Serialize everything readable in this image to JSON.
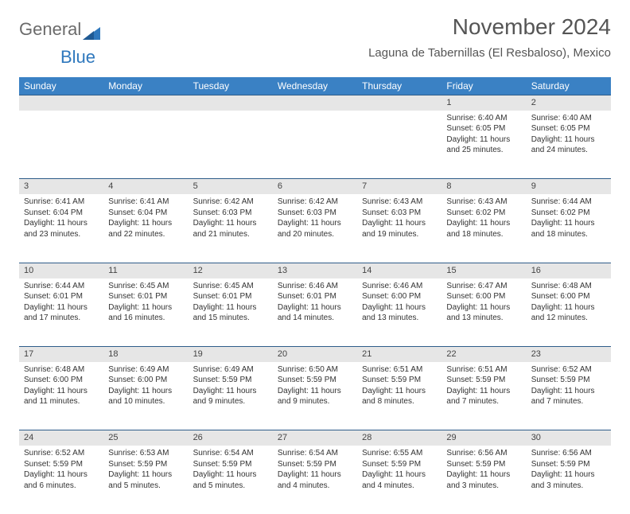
{
  "brand": {
    "part1": "General",
    "part2": "Blue"
  },
  "title": "November 2024",
  "location": "Laguna de Tabernillas (El Resbaloso), Mexico",
  "colors": {
    "header_bg": "#3a81c4",
    "header_text": "#ffffff",
    "daynum_bg": "#e6e6e6",
    "row_border": "#2f5d8a",
    "logo_gray": "#6b6b6b",
    "logo_blue": "#2f78bd",
    "body_text": "#333333",
    "page_bg": "#ffffff"
  },
  "typography": {
    "title_fontsize": 28,
    "location_fontsize": 15,
    "weekday_fontsize": 12,
    "daynum_fontsize": 11,
    "cell_fontsize": 10
  },
  "weekdays": [
    "Sunday",
    "Monday",
    "Tuesday",
    "Wednesday",
    "Thursday",
    "Friday",
    "Saturday"
  ],
  "weeks": [
    [
      {
        "n": "",
        "sunrise": "",
        "sunset": "",
        "daylight": ""
      },
      {
        "n": "",
        "sunrise": "",
        "sunset": "",
        "daylight": ""
      },
      {
        "n": "",
        "sunrise": "",
        "sunset": "",
        "daylight": ""
      },
      {
        "n": "",
        "sunrise": "",
        "sunset": "",
        "daylight": ""
      },
      {
        "n": "",
        "sunrise": "",
        "sunset": "",
        "daylight": ""
      },
      {
        "n": "1",
        "sunrise": "Sunrise: 6:40 AM",
        "sunset": "Sunset: 6:05 PM",
        "daylight": "Daylight: 11 hours and 25 minutes."
      },
      {
        "n": "2",
        "sunrise": "Sunrise: 6:40 AM",
        "sunset": "Sunset: 6:05 PM",
        "daylight": "Daylight: 11 hours and 24 minutes."
      }
    ],
    [
      {
        "n": "3",
        "sunrise": "Sunrise: 6:41 AM",
        "sunset": "Sunset: 6:04 PM",
        "daylight": "Daylight: 11 hours and 23 minutes."
      },
      {
        "n": "4",
        "sunrise": "Sunrise: 6:41 AM",
        "sunset": "Sunset: 6:04 PM",
        "daylight": "Daylight: 11 hours and 22 minutes."
      },
      {
        "n": "5",
        "sunrise": "Sunrise: 6:42 AM",
        "sunset": "Sunset: 6:03 PM",
        "daylight": "Daylight: 11 hours and 21 minutes."
      },
      {
        "n": "6",
        "sunrise": "Sunrise: 6:42 AM",
        "sunset": "Sunset: 6:03 PM",
        "daylight": "Daylight: 11 hours and 20 minutes."
      },
      {
        "n": "7",
        "sunrise": "Sunrise: 6:43 AM",
        "sunset": "Sunset: 6:03 PM",
        "daylight": "Daylight: 11 hours and 19 minutes."
      },
      {
        "n": "8",
        "sunrise": "Sunrise: 6:43 AM",
        "sunset": "Sunset: 6:02 PM",
        "daylight": "Daylight: 11 hours and 18 minutes."
      },
      {
        "n": "9",
        "sunrise": "Sunrise: 6:44 AM",
        "sunset": "Sunset: 6:02 PM",
        "daylight": "Daylight: 11 hours and 18 minutes."
      }
    ],
    [
      {
        "n": "10",
        "sunrise": "Sunrise: 6:44 AM",
        "sunset": "Sunset: 6:01 PM",
        "daylight": "Daylight: 11 hours and 17 minutes."
      },
      {
        "n": "11",
        "sunrise": "Sunrise: 6:45 AM",
        "sunset": "Sunset: 6:01 PM",
        "daylight": "Daylight: 11 hours and 16 minutes."
      },
      {
        "n": "12",
        "sunrise": "Sunrise: 6:45 AM",
        "sunset": "Sunset: 6:01 PM",
        "daylight": "Daylight: 11 hours and 15 minutes."
      },
      {
        "n": "13",
        "sunrise": "Sunrise: 6:46 AM",
        "sunset": "Sunset: 6:01 PM",
        "daylight": "Daylight: 11 hours and 14 minutes."
      },
      {
        "n": "14",
        "sunrise": "Sunrise: 6:46 AM",
        "sunset": "Sunset: 6:00 PM",
        "daylight": "Daylight: 11 hours and 13 minutes."
      },
      {
        "n": "15",
        "sunrise": "Sunrise: 6:47 AM",
        "sunset": "Sunset: 6:00 PM",
        "daylight": "Daylight: 11 hours and 13 minutes."
      },
      {
        "n": "16",
        "sunrise": "Sunrise: 6:48 AM",
        "sunset": "Sunset: 6:00 PM",
        "daylight": "Daylight: 11 hours and 12 minutes."
      }
    ],
    [
      {
        "n": "17",
        "sunrise": "Sunrise: 6:48 AM",
        "sunset": "Sunset: 6:00 PM",
        "daylight": "Daylight: 11 hours and 11 minutes."
      },
      {
        "n": "18",
        "sunrise": "Sunrise: 6:49 AM",
        "sunset": "Sunset: 6:00 PM",
        "daylight": "Daylight: 11 hours and 10 minutes."
      },
      {
        "n": "19",
        "sunrise": "Sunrise: 6:49 AM",
        "sunset": "Sunset: 5:59 PM",
        "daylight": "Daylight: 11 hours and 9 minutes."
      },
      {
        "n": "20",
        "sunrise": "Sunrise: 6:50 AM",
        "sunset": "Sunset: 5:59 PM",
        "daylight": "Daylight: 11 hours and 9 minutes."
      },
      {
        "n": "21",
        "sunrise": "Sunrise: 6:51 AM",
        "sunset": "Sunset: 5:59 PM",
        "daylight": "Daylight: 11 hours and 8 minutes."
      },
      {
        "n": "22",
        "sunrise": "Sunrise: 6:51 AM",
        "sunset": "Sunset: 5:59 PM",
        "daylight": "Daylight: 11 hours and 7 minutes."
      },
      {
        "n": "23",
        "sunrise": "Sunrise: 6:52 AM",
        "sunset": "Sunset: 5:59 PM",
        "daylight": "Daylight: 11 hours and 7 minutes."
      }
    ],
    [
      {
        "n": "24",
        "sunrise": "Sunrise: 6:52 AM",
        "sunset": "Sunset: 5:59 PM",
        "daylight": "Daylight: 11 hours and 6 minutes."
      },
      {
        "n": "25",
        "sunrise": "Sunrise: 6:53 AM",
        "sunset": "Sunset: 5:59 PM",
        "daylight": "Daylight: 11 hours and 5 minutes."
      },
      {
        "n": "26",
        "sunrise": "Sunrise: 6:54 AM",
        "sunset": "Sunset: 5:59 PM",
        "daylight": "Daylight: 11 hours and 5 minutes."
      },
      {
        "n": "27",
        "sunrise": "Sunrise: 6:54 AM",
        "sunset": "Sunset: 5:59 PM",
        "daylight": "Daylight: 11 hours and 4 minutes."
      },
      {
        "n": "28",
        "sunrise": "Sunrise: 6:55 AM",
        "sunset": "Sunset: 5:59 PM",
        "daylight": "Daylight: 11 hours and 4 minutes."
      },
      {
        "n": "29",
        "sunrise": "Sunrise: 6:56 AM",
        "sunset": "Sunset: 5:59 PM",
        "daylight": "Daylight: 11 hours and 3 minutes."
      },
      {
        "n": "30",
        "sunrise": "Sunrise: 6:56 AM",
        "sunset": "Sunset: 5:59 PM",
        "daylight": "Daylight: 11 hours and 3 minutes."
      }
    ]
  ]
}
